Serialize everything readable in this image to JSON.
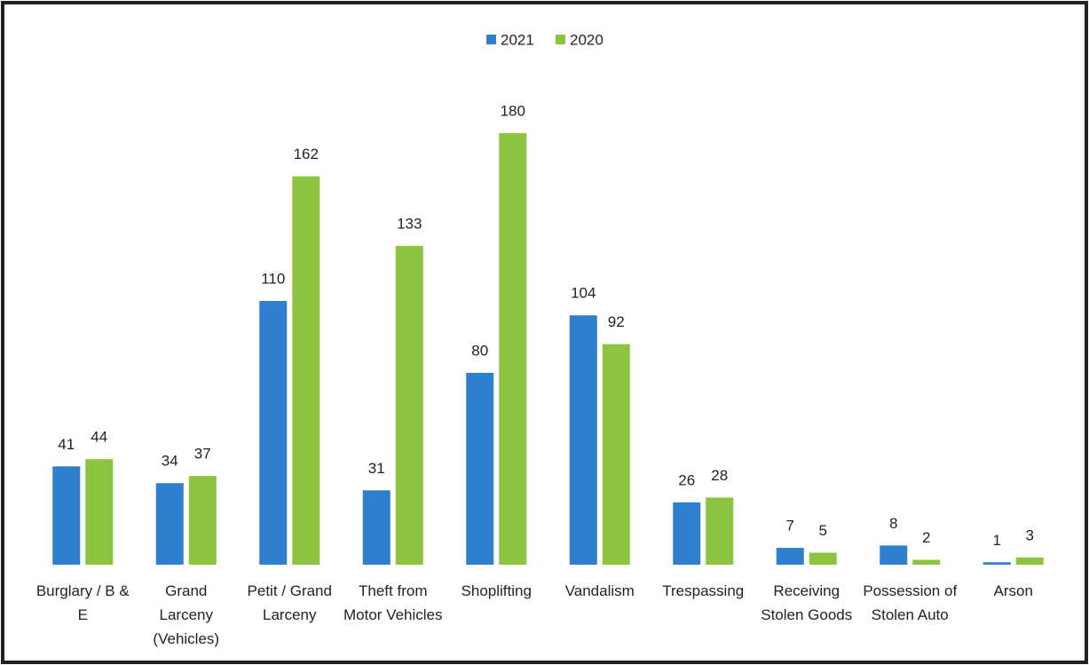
{
  "chart_data": {
    "type": "bar",
    "categories": [
      "Burglary / B & E",
      "Grand Larceny (Vehicles)",
      "Petit / Grand Larceny",
      "Theft from Motor Vehicles",
      "Shoplifting",
      "Vandalism",
      "Trespassing",
      "Receiving Stolen Goods",
      "Possession of Stolen Auto",
      "Arson"
    ],
    "series": [
      {
        "name": "2021",
        "color": "#2f7fcf",
        "values": [
          41,
          34,
          110,
          31,
          80,
          104,
          26,
          7,
          8,
          1
        ]
      },
      {
        "name": "2020",
        "color": "#8dc43f",
        "values": [
          44,
          37,
          162,
          133,
          180,
          92,
          28,
          5,
          2,
          3
        ]
      }
    ]
  }
}
